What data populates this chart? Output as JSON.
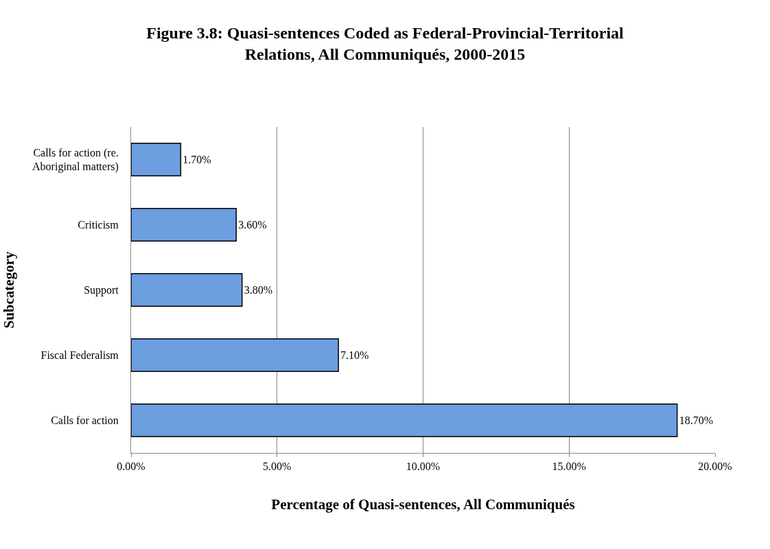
{
  "chart_data": {
    "type": "bar",
    "orientation": "horizontal",
    "title": "Figure 3.8: Quasi-sentences Coded as Federal-Provincial-Territorial Relations, All Communiqués, 2000-2015",
    "xlabel": "Percentage of Quasi-sentences, All Communiqués",
    "ylabel": "Subcategory",
    "categories": [
      "Calls for action (re. Aboriginal matters)",
      "Criticism",
      "Support",
      "Fiscal Federalism",
      "Calls for action"
    ],
    "values": [
      1.7,
      3.6,
      3.8,
      7.1,
      18.7
    ],
    "value_labels": [
      "1.70%",
      "3.60%",
      "3.80%",
      "7.10%",
      "18.70%"
    ],
    "color": "#6c9ee0",
    "xlim": [
      0,
      20
    ],
    "xticks": [
      {
        "value": 0,
        "label": "0.00%"
      },
      {
        "value": 5,
        "label": "5.00%"
      },
      {
        "value": 10,
        "label": "10.00%"
      },
      {
        "value": 15,
        "label": "15.00%"
      },
      {
        "value": 20,
        "label": "20.00%"
      }
    ],
    "grid": "x",
    "legend": false
  }
}
